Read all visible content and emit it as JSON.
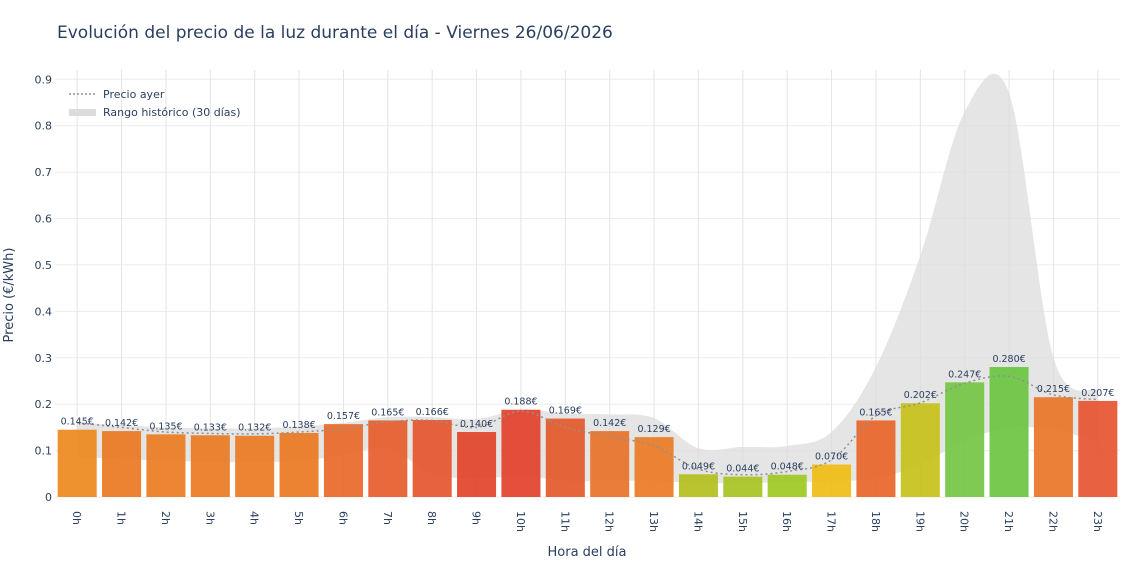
{
  "chart_data": {
    "type": "bar",
    "title": "Evolución del precio de la luz durante el día - Viernes 26/06/2026",
    "xlabel": "Hora del día",
    "ylabel": "Precio (€/kWh)",
    "ylim": [
      0,
      0.92
    ],
    "yticks": [
      0,
      0.1,
      0.2,
      0.3,
      0.4,
      0.5,
      0.6,
      0.7,
      0.8,
      0.9
    ],
    "ytick_labels": [
      "0",
      "0.1",
      "0.2",
      "0.3",
      "0.4",
      "0.5",
      "0.6",
      "0.7",
      "0.8",
      "0.9"
    ],
    "grid": true,
    "legend_position": "top-left",
    "categories": [
      "0h",
      "1h",
      "2h",
      "3h",
      "4h",
      "5h",
      "6h",
      "7h",
      "8h",
      "9h",
      "10h",
      "11h",
      "12h",
      "13h",
      "14h",
      "15h",
      "16h",
      "17h",
      "18h",
      "19h",
      "20h",
      "21h",
      "22h",
      "23h"
    ],
    "values": [
      0.145,
      0.142,
      0.135,
      0.133,
      0.132,
      0.138,
      0.157,
      0.165,
      0.166,
      0.14,
      0.188,
      0.169,
      0.142,
      0.129,
      0.049,
      0.044,
      0.048,
      0.07,
      0.165,
      0.202,
      0.247,
      0.28,
      0.215,
      0.207
    ],
    "value_labels": [
      "0.145€",
      "0.142€",
      "0.135€",
      "0.133€",
      "0.132€",
      "0.138€",
      "0.157€",
      "0.165€",
      "0.166€",
      "0.140€",
      "0.188€",
      "0.169€",
      "0.142€",
      "0.129€",
      "0.049€",
      "0.044€",
      "0.048€",
      "0.070€",
      "0.165€",
      "0.202€",
      "0.247€",
      "0.280€",
      "0.215€",
      "0.207€"
    ],
    "bar_colors": [
      "#ec8a1e",
      "#ea7a22",
      "#eb7d24",
      "#ea7c23",
      "#ea7c23",
      "#ea7a22",
      "#e8692a",
      "#e65f2d",
      "#e5572e",
      "#e2452d",
      "#e2432c",
      "#e45a2c",
      "#e8732a",
      "#eb7c26",
      "#b4c020",
      "#a7c422",
      "#9fc925",
      "#efbd16",
      "#e8662b",
      "#c6c21c",
      "#74c645",
      "#6cc642",
      "#e9772a",
      "#e65531"
    ],
    "series": [
      {
        "name": "Precio ayer",
        "color": "#909090",
        "style": "dotted",
        "values": [
          0.16,
          0.15,
          0.14,
          0.137,
          0.136,
          0.14,
          0.147,
          0.162,
          0.165,
          0.15,
          0.185,
          0.15,
          0.13,
          0.11,
          0.06,
          0.048,
          0.055,
          0.08,
          0.175,
          0.203,
          0.245,
          0.26,
          0.22,
          0.21
        ]
      },
      {
        "name": "Rango histórico (30 días)",
        "color": "#dcdcdc",
        "style": "band",
        "lower": [
          0.085,
          0.082,
          0.078,
          0.076,
          0.075,
          0.078,
          0.09,
          0.105,
          0.05,
          0.04,
          0.045,
          0.035,
          0.035,
          0.035,
          0.03,
          0.03,
          0.032,
          0.034,
          0.04,
          0.07,
          0.12,
          0.15,
          0.145,
          0.12
        ],
        "upper": [
          0.16,
          0.155,
          0.15,
          0.148,
          0.148,
          0.152,
          0.16,
          0.172,
          0.172,
          0.168,
          0.188,
          0.18,
          0.178,
          0.17,
          0.105,
          0.108,
          0.11,
          0.14,
          0.28,
          0.52,
          0.83,
          0.87,
          0.3,
          0.23
        ]
      }
    ]
  }
}
